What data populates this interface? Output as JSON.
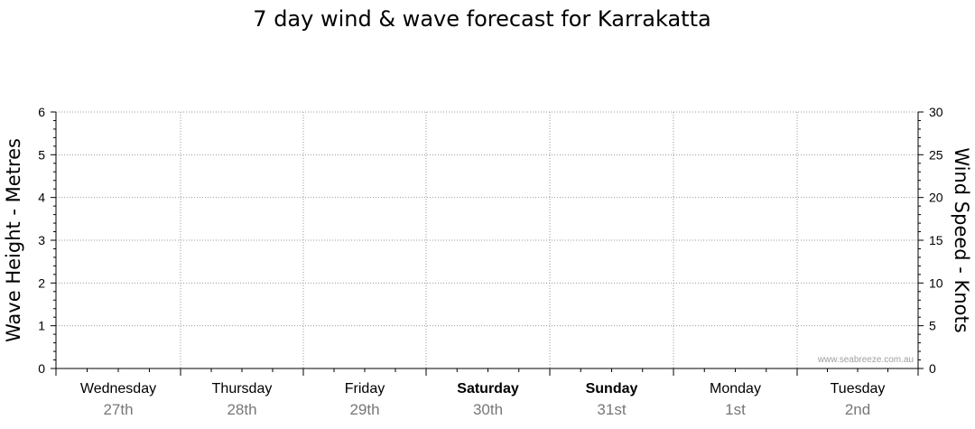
{
  "chart_data": {
    "type": "line",
    "title": "7 day wind & wave forecast for Karrakatta",
    "ylabel_left": "Wave Height - Metres",
    "ylabel_right": "Wind Speed - Knots",
    "ylim_left": [
      0,
      6
    ],
    "ylim_right": [
      0,
      30
    ],
    "yticks_left": [
      "0",
      "1",
      "2",
      "3",
      "4",
      "5",
      "6"
    ],
    "yticks_right": [
      "0",
      "5",
      "10",
      "15",
      "20",
      "25",
      "30"
    ],
    "days": [
      {
        "name": "Wednesday",
        "date": "27th",
        "bold": false
      },
      {
        "name": "Thursday",
        "date": "28th",
        "bold": false
      },
      {
        "name": "Friday",
        "date": "29th",
        "bold": false
      },
      {
        "name": "Saturday",
        "date": "30th",
        "bold": true
      },
      {
        "name": "Sunday",
        "date": "31st",
        "bold": true
      },
      {
        "name": "Monday",
        "date": "1st",
        "bold": false
      },
      {
        "name": "Tuesday",
        "date": "2nd",
        "bold": false
      }
    ],
    "series": [],
    "grid": true,
    "watermark": "www.seabreeze.com.au",
    "colors": {
      "grid": "#9a9a9a",
      "axis": "#000000",
      "date_text": "#777777",
      "watermark": "#a0a0a0"
    }
  }
}
